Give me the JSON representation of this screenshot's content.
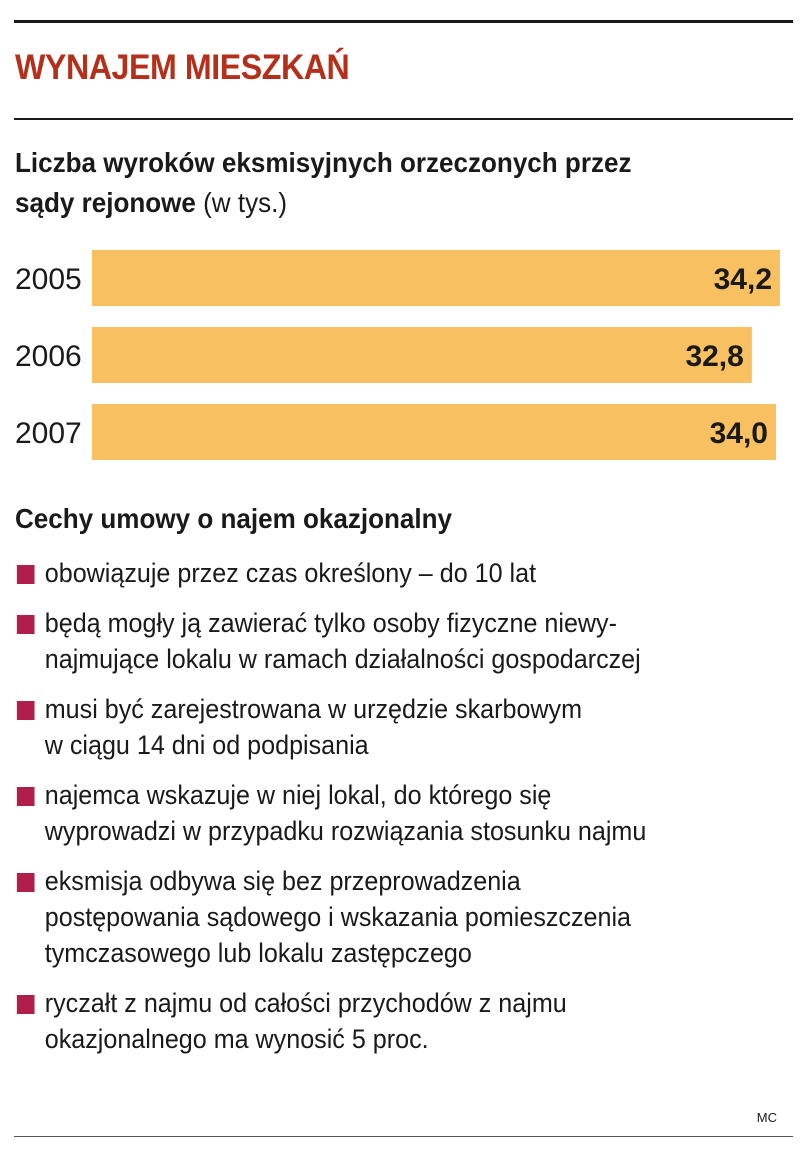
{
  "header": {
    "title": "WYNAJEM MIESZKAŃ"
  },
  "chart_data": {
    "type": "bar",
    "orientation": "horizontal",
    "title": "Liczba wyroków eksmisyjnych orzeczonych przez sądy rejonowe",
    "unit": "(w tys.)",
    "categories": [
      "2005",
      "2006",
      "2007"
    ],
    "value_labels": [
      "34,2",
      "32,8",
      "34,0"
    ],
    "values": [
      34.2,
      32.8,
      34.0
    ],
    "xlim": [
      0,
      34.2
    ],
    "grid": false,
    "legend": "none",
    "bar_color": "#f8c060"
  },
  "features": {
    "heading": "Cechy umowy o najem okazjonalny",
    "items": [
      "obowiązuje przez czas określony – do 10 lat",
      "będą mogły ją zawierać tylko osoby fizyczne niewy-\nnajmujące lokalu w ramach działalności gospodarczej",
      "musi być zarejestrowana w urzędzie skarbowym\nw ciągu 14 dni od podpisania",
      "najemca wskazuje w niej lokal, do którego się\nwyprowadzi w przypadku rozwiązania stosunku najmu",
      "eksmisja odbywa się bez przeprowadzenia\npostępowania sądowego i wskazania pomieszczenia\ntymczasowego lub lokalu zastępczego",
      "ryczałt z najmu od całości przychodów z najmu\nokazjonalnego ma wynosić 5 proc."
    ],
    "bullet_color": "#b01e4a"
  },
  "footer": {
    "source": "MC"
  }
}
